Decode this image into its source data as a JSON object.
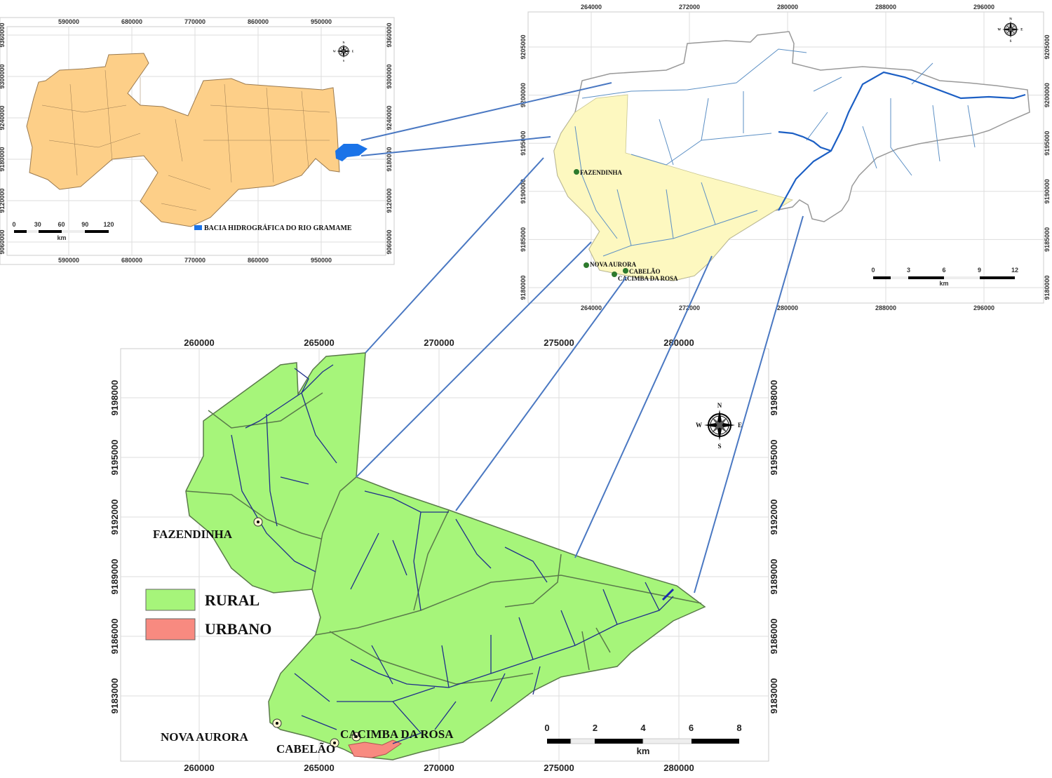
{
  "state_map": {
    "x_ticks": [
      "590000",
      "680000",
      "770000",
      "860000",
      "950000"
    ],
    "y_ticks": [
      "9360000",
      "9300000",
      "9240000",
      "9180000",
      "9120000",
      "9060000"
    ],
    "legend_label": "BACIA HIDROGRÁFICA DO RIO GRAMAME",
    "legend_color": "#1a73e8",
    "fill_color": "#fdcf88",
    "scale_labels": [
      "0",
      "30",
      "60",
      "90",
      "120"
    ],
    "scale_unit": "km",
    "compass": {
      "n": "N",
      "s": "S",
      "e": "E",
      "w": "W"
    }
  },
  "basin_map": {
    "x_ticks": [
      "264000",
      "272000",
      "280000",
      "288000",
      "296000"
    ],
    "y_ticks": [
      "9205000",
      "9200000",
      "9195000",
      "9190000",
      "9185000",
      "9180000"
    ],
    "highlight_color": "#fdf8c0",
    "river_color": "#5b8fc4",
    "towns": [
      "FAZENDINHA",
      "NOVA AURORA",
      "CABELÃO",
      "CACIMBA DA ROSA"
    ],
    "scale_labels": [
      "0",
      "3",
      "6",
      "9",
      "12"
    ],
    "scale_unit": "km",
    "compass": {
      "n": "N",
      "s": "S",
      "e": "E",
      "w": "W"
    }
  },
  "detail_map": {
    "x_ticks": [
      "260000",
      "265000",
      "270000",
      "275000",
      "280000"
    ],
    "y_ticks": [
      "9198000",
      "9195000",
      "9192000",
      "9189000",
      "9186000",
      "9183000"
    ],
    "legend": [
      {
        "label": "RURAL",
        "color": "#a6f57a"
      },
      {
        "label": "URBANO",
        "color": "#f88a80"
      }
    ],
    "towns": [
      "FAZENDINHA",
      "NOVA AURORA",
      "CABELÃO",
      "CACIMBA DA ROSA"
    ],
    "scale_labels": [
      "0",
      "2",
      "4",
      "6",
      "8"
    ],
    "scale_unit": "km",
    "compass": {
      "n": "N",
      "s": "S",
      "e": "E",
      "w": "W"
    }
  }
}
